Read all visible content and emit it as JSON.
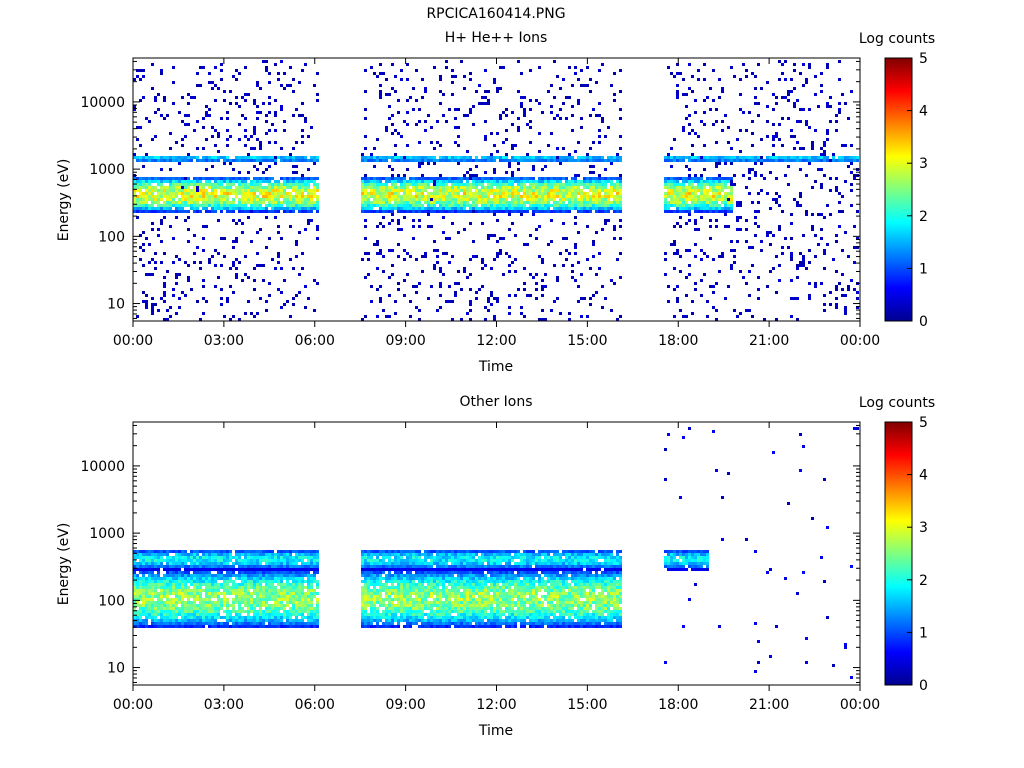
{
  "figure": {
    "title": "RPCICA160414.PNG"
  },
  "chart_data": [
    {
      "type": "heatmap",
      "id": "panel-top",
      "title": "H+ He++ Ions",
      "xlabel": "Time",
      "ylabel": "Energy (eV)",
      "x_ticks": [
        "00:00",
        "03:00",
        "06:00",
        "09:00",
        "12:00",
        "15:00",
        "18:00",
        "21:00",
        "00:00"
      ],
      "x_tick_hours": [
        0,
        3,
        6,
        9,
        12,
        15,
        18,
        21,
        24
      ],
      "y_scale": "log",
      "y_range": [
        5.5,
        45000
      ],
      "y_ticks": [
        "10",
        "100",
        "1000",
        "10000"
      ],
      "y_tick_values": [
        10,
        100,
        1000,
        10000
      ],
      "colorbar": {
        "label": "Log counts",
        "min": 0,
        "max": 5,
        "ticks": [
          "0",
          "1",
          "2",
          "3",
          "4",
          "5"
        ]
      },
      "data_gaps_hours": [
        [
          6.1,
          7.5
        ],
        [
          16.1,
          17.5
        ]
      ],
      "features": [
        {
          "name": "main ion band",
          "energy_range_eV": [
            250,
            700
          ],
          "log_counts_peak": 3.2,
          "hours": [
            [
              0,
              6.1
            ],
            [
              7.5,
              16.1
            ],
            [
              17.5,
              19.8
            ]
          ]
        },
        {
          "name": "upper band",
          "energy_range_eV": [
            1300,
            1600
          ],
          "log_counts_peak": 1.8,
          "hours": [
            [
              0,
              6.1
            ],
            [
              7.5,
              16.1
            ],
            [
              17.5,
              24
            ]
          ]
        },
        {
          "name": "background noise",
          "log_counts_peak": 0.3,
          "hours": [
            [
              0,
              24
            ]
          ]
        }
      ]
    },
    {
      "type": "heatmap",
      "id": "panel-bottom",
      "title": "Other Ions",
      "xlabel": "Time",
      "ylabel": "Energy (eV)",
      "x_ticks": [
        "00:00",
        "03:00",
        "06:00",
        "09:00",
        "12:00",
        "15:00",
        "18:00",
        "21:00",
        "00:00"
      ],
      "x_tick_hours": [
        0,
        3,
        6,
        9,
        12,
        15,
        18,
        21,
        24
      ],
      "y_scale": "log",
      "y_range": [
        5.5,
        45000
      ],
      "y_ticks": [
        "10",
        "100",
        "1000",
        "10000"
      ],
      "y_tick_values": [
        10,
        100,
        1000,
        10000
      ],
      "colorbar": {
        "label": "Log counts",
        "min": 0,
        "max": 5,
        "ticks": [
          "0",
          "1",
          "2",
          "3",
          "4",
          "5"
        ]
      },
      "data_gaps_hours": [
        [
          6.1,
          7.5
        ],
        [
          16.1,
          17.5
        ]
      ],
      "features": [
        {
          "name": "upper band",
          "energy_range_eV": [
            300,
            550
          ],
          "log_counts_peak": 2.0,
          "hours": [
            [
              0,
              6.1
            ],
            [
              7.5,
              16.1
            ],
            [
              17.5,
              19.0
            ]
          ]
        },
        {
          "name": "lower band",
          "energy_range_eV": [
            45,
            250
          ],
          "log_counts_peak": 2.8,
          "hours": [
            [
              0,
              6.1
            ],
            [
              7.5,
              16.1
            ]
          ]
        },
        {
          "name": "sparse counts",
          "log_counts_peak": 0.5,
          "hours": [
            [
              17.5,
              24
            ]
          ]
        }
      ]
    }
  ]
}
